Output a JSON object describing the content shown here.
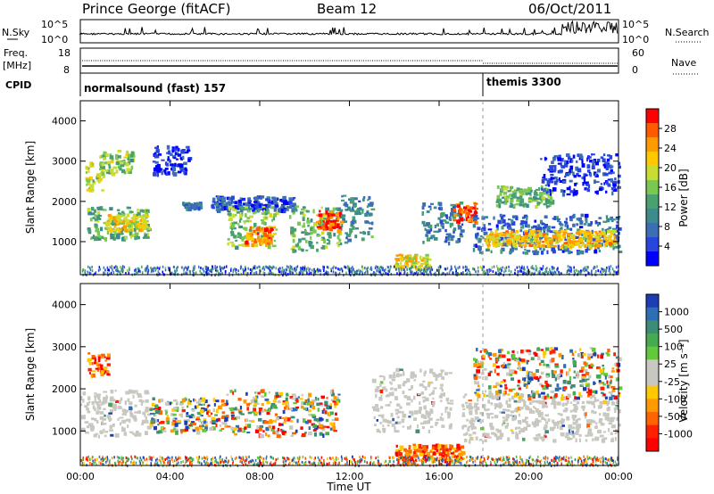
{
  "header": {
    "station": "Prince George (fitACF)",
    "beam": "Beam 12",
    "date": "06/Oct/2011"
  },
  "strips": {
    "nsky_label": "N.Sky",
    "nsky_ticks": [
      "10^5",
      "10^0"
    ],
    "nsearch_label": "N.Search",
    "nsearch_ticks": [
      "10^5",
      "10^0"
    ],
    "freq_label_1": "Freq.",
    "freq_label_2": "[MHz]",
    "freq_ticks": [
      "18",
      "8"
    ],
    "nave_label": "Nave",
    "nave_ticks": [
      "60",
      "0"
    ],
    "cpid_label": "CPID",
    "cpid_segments": [
      "normalsound (fast) 157",
      "themis 3300"
    ]
  },
  "chart_data": [
    {
      "type": "heatmap",
      "panel": "power",
      "ylabel": "Slant Range [km]",
      "yticks": [
        "4000",
        "3000",
        "2000",
        "1000"
      ],
      "ylim": [
        180,
        4500
      ],
      "colorbar_label": "Power [dB]",
      "colorbar_ticks": [
        "28",
        "24",
        "20",
        "16",
        "12",
        "8",
        "4"
      ],
      "colorbar_colors": [
        "#ff0000",
        "#ff5a00",
        "#ff9a00",
        "#ffc800",
        "#c8dc32",
        "#7ac850",
        "#4aa06e",
        "#3c8c8c",
        "#3c6eb4",
        "#2846dc",
        "#0000ff"
      ],
      "echo_regions": [
        {
          "t": [
            0.2,
            1.0
          ],
          "r": [
            2300,
            3000
          ],
          "level": 18
        },
        {
          "t": [
            0.3,
            3.0
          ],
          "r": [
            1100,
            1900
          ],
          "level": 14
        },
        {
          "t": [
            1.0,
            3.0
          ],
          "r": [
            1300,
            1700
          ],
          "level": 20
        },
        {
          "t": [
            0.8,
            2.3
          ],
          "r": [
            2700,
            3300
          ],
          "level": 16
        },
        {
          "t": [
            3.2,
            4.8
          ],
          "r": [
            2700,
            3400
          ],
          "level": 5
        },
        {
          "t": [
            4.5,
            5.3
          ],
          "r": [
            1850,
            2000
          ],
          "level": 10
        },
        {
          "t": [
            5.8,
            9.5
          ],
          "r": [
            1800,
            2150
          ],
          "level": 7
        },
        {
          "t": [
            6.5,
            8.7
          ],
          "r": [
            900,
            1900
          ],
          "level": 16
        },
        {
          "t": [
            7.3,
            8.6
          ],
          "r": [
            950,
            1400
          ],
          "level": 24
        },
        {
          "t": [
            9.3,
            11.6
          ],
          "r": [
            800,
            1900
          ],
          "level": 15
        },
        {
          "t": [
            10.5,
            11.6
          ],
          "r": [
            1300,
            1800
          ],
          "level": 26
        },
        {
          "t": [
            11.6,
            13.0
          ],
          "r": [
            1000,
            2200
          ],
          "level": 11
        },
        {
          "t": [
            14.0,
            15.5
          ],
          "r": [
            350,
            700
          ],
          "level": 20
        },
        {
          "t": [
            15.2,
            17.0
          ],
          "r": [
            1000,
            2000
          ],
          "level": 10
        },
        {
          "t": [
            16.6,
            17.6
          ],
          "r": [
            1500,
            2000
          ],
          "level": 26
        },
        {
          "t": [
            17.5,
            24.0
          ],
          "r": [
            750,
            1700
          ],
          "level": 9
        },
        {
          "t": [
            18.0,
            23.8
          ],
          "r": [
            900,
            1300
          ],
          "level": 21
        },
        {
          "t": [
            18.5,
            21.0
          ],
          "r": [
            1900,
            2400
          ],
          "level": 14
        },
        {
          "t": [
            20.5,
            24.0
          ],
          "r": [
            2200,
            3200
          ],
          "level": 6
        }
      ]
    },
    {
      "type": "heatmap",
      "panel": "velocity",
      "ylabel": "Slant Range [km]",
      "yticks": [
        "4000",
        "3000",
        "2000",
        "1000"
      ],
      "ylim": [
        180,
        4500
      ],
      "xlabel": "Time UT",
      "xticks": [
        "00:00",
        "04:00",
        "08:00",
        "12:00",
        "16:00",
        "20:00",
        "00:00"
      ],
      "colorbar_label": "Velocity [m s⁻¹]",
      "colorbar_ticks": [
        "1000",
        "500",
        "100",
        "25",
        "-25",
        "-100",
        "-500",
        "-1000"
      ],
      "colorbar_colors": [
        "#1e3cb4",
        "#2e6eb4",
        "#3c8c78",
        "#46aa50",
        "#64c83c",
        "#c8c8c0",
        "#c8c8c0",
        "#ffc800",
        "#ff9a00",
        "#ff6400",
        "#ff2000",
        "#ff0000"
      ],
      "echo_regions": [
        {
          "t": [
            0.0,
            3.0
          ],
          "r": [
            900,
            2000
          ],
          "kind": "ground"
        },
        {
          "t": [
            0.3,
            1.2
          ],
          "r": [
            2300,
            2900
          ],
          "kind": "neg"
        },
        {
          "t": [
            3.0,
            6.5
          ],
          "r": [
            1000,
            1800
          ],
          "kind": "mixed"
        },
        {
          "t": [
            6.5,
            11.5
          ],
          "r": [
            900,
            2000
          ],
          "kind": "mixed"
        },
        {
          "t": [
            13.0,
            16.5
          ],
          "r": [
            1000,
            2500
          ],
          "kind": "ground"
        },
        {
          "t": [
            14.0,
            17.0
          ],
          "r": [
            300,
            700
          ],
          "kind": "neg"
        },
        {
          "t": [
            17.0,
            24.0
          ],
          "r": [
            800,
            1900
          ],
          "kind": "ground"
        },
        {
          "t": [
            17.5,
            24.0
          ],
          "r": [
            1800,
            3000
          ],
          "kind": "mixed"
        }
      ]
    }
  ],
  "colors": {
    "axis": "#000000",
    "ground_scatter": "#c8c8c0"
  }
}
